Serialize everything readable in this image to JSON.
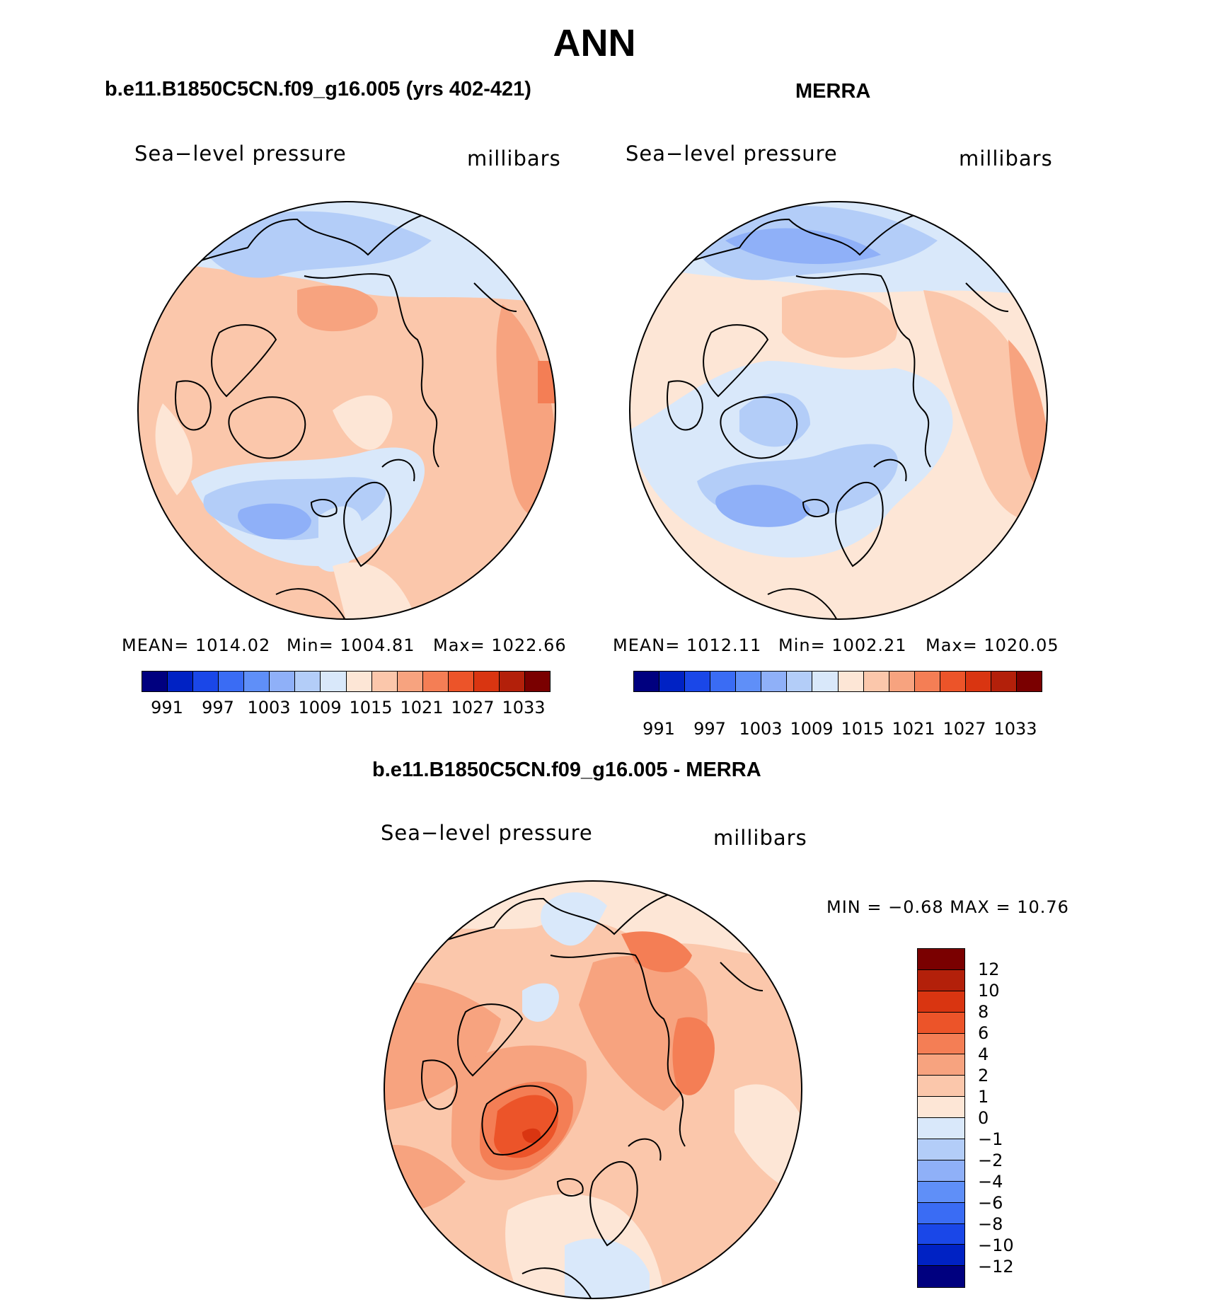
{
  "title": "ANN",
  "colors": {
    "abs_palette": [
      "#00007f",
      "#0022c4",
      "#1a47e8",
      "#3a6cf4",
      "#5f8ff8",
      "#8fb0f8",
      "#b3cdf8",
      "#d9e8fa",
      "#fde6d6",
      "#fbc7ab",
      "#f7a37f",
      "#f47e55",
      "#ec5429",
      "#d93511",
      "#b3200a",
      "#7a0000"
    ],
    "diff_palette": [
      "#7a0000",
      "#b3200a",
      "#d93511",
      "#ec5429",
      "#f47e55",
      "#f7a37f",
      "#fbc7ab",
      "#fde6d6",
      "#d9e8fa",
      "#b3cdf8",
      "#8fb0f8",
      "#5f8ff8",
      "#3a6cf4",
      "#1a47e8",
      "#0022c4",
      "#00007f"
    ]
  },
  "left_panel": {
    "title": "b.e11.B1850C5CN.f09_g16.005 (yrs 402-421)",
    "field": "Sea−level pressure",
    "units": "millibars",
    "mean": "MEAN=  1014.02",
    "min": "Min=  1004.81",
    "max": "Max=  1022.66",
    "ticks": [
      "991",
      "997",
      "1003",
      "1009",
      "1015",
      "1021",
      "1027",
      "1033"
    ]
  },
  "right_panel": {
    "title": "MERRA",
    "field": "Sea−level pressure",
    "units": "millibars",
    "mean": "MEAN=  1012.11",
    "min": "Min=  1002.21",
    "max": "Max=  1020.05",
    "ticks": [
      "991",
      "997",
      "1003",
      "1009",
      "1015",
      "1021",
      "1027",
      "1033"
    ]
  },
  "diff_panel": {
    "title": "b.e11.B1850C5CN.f09_g16.005 - MERRA",
    "field": "Sea−level pressure",
    "units": "millibars",
    "minmax": "MIN =   −0.68  MAX =    10.76",
    "ticks": [
      "12",
      "10",
      "8",
      "6",
      "4",
      "2",
      "1",
      "0",
      "−1",
      "−2",
      "−4",
      "−6",
      "−8",
      "−10",
      "−12"
    ]
  }
}
